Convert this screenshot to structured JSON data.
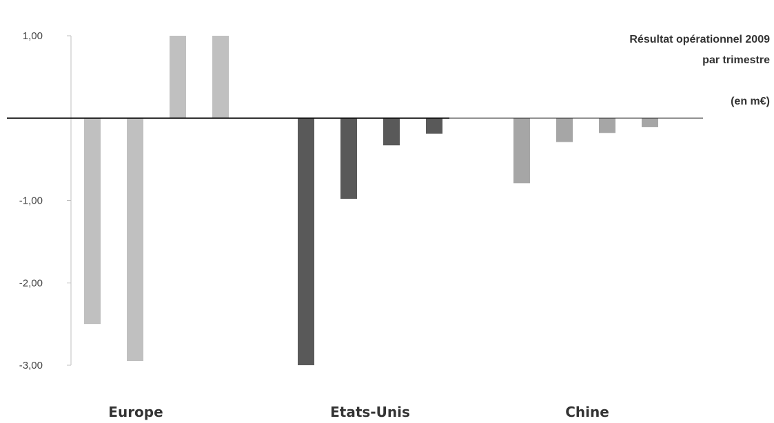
{
  "chart_data": {
    "type": "bar",
    "title": "Résultat opérationnel 2009",
    "subtitle": "par trimestre",
    "unit_note": "(en m€)",
    "ylim": [
      -3,
      1
    ],
    "y_ticks": [
      {
        "value": 1,
        "label": "1,00"
      },
      {
        "value": -1,
        "label": "-1,00"
      },
      {
        "value": -2,
        "label": "-2,00"
      },
      {
        "value": -3,
        "label": "-3,00"
      }
    ],
    "groups": [
      {
        "label": "Europe",
        "color": "#c0c0c0",
        "values": [
          -2.5,
          -2.95,
          1.0,
          1.0
        ]
      },
      {
        "label": "Etats-Unis",
        "color": "#595959",
        "values": [
          -3.0,
          -0.98,
          -0.33,
          -0.19
        ]
      },
      {
        "label": "Chine",
        "color": "#a6a6a6",
        "values": [
          -0.79,
          -0.29,
          -0.18,
          -0.11
        ]
      }
    ],
    "grid": false,
    "legend": "none"
  }
}
